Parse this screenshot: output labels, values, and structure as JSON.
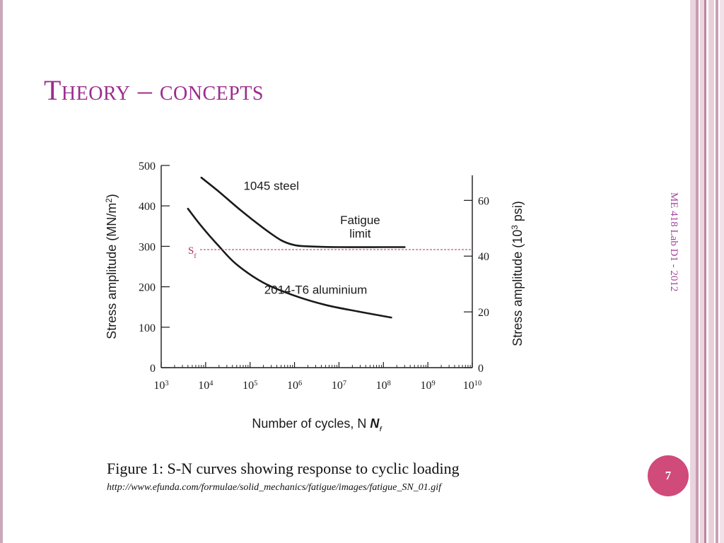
{
  "slide": {
    "title": "Theory – concepts",
    "side_text": "ME 418 Lab D1 - 2012",
    "caption": "Figure 1: S-N curves showing response to cyclic loading",
    "url": "http://www.efunda.com/formulae/solid_mechanics/fatigue/images/fatigue_SN_01.gif",
    "page_number": "7",
    "colors": {
      "title": "#9b2d8e",
      "page_badge": "#d04a7a",
      "sf_line": "#b0305a",
      "curve": "#1a1a1a"
    }
  },
  "chart_data": {
    "type": "line",
    "xlabel": "Number of cycles, N",
    "xlabel_sub": "f",
    "ylabel": "Stress amplitude (MN/m",
    "ylabel_sup": "2",
    "ylabel_end": ")",
    "ylabel_right": "Stress amplitude (10",
    "ylabel_right_sup": "3",
    "ylabel_right_end": " psi)",
    "x_scale": "log",
    "xlim": [
      1000,
      10000000000
    ],
    "ylim": [
      0,
      500
    ],
    "x_ticks": [
      {
        "value": 1000,
        "base": "10",
        "exp": "3"
      },
      {
        "value": 10000,
        "base": "10",
        "exp": "4"
      },
      {
        "value": 100000,
        "base": "10",
        "exp": "5"
      },
      {
        "value": 1000000,
        "base": "10",
        "exp": "6"
      },
      {
        "value": 10000000,
        "base": "10",
        "exp": "7"
      },
      {
        "value": 100000000,
        "base": "10",
        "exp": "8"
      },
      {
        "value": 1000000000,
        "base": "10",
        "exp": "9"
      },
      {
        "value": 10000000000,
        "base": "10",
        "exp": "10"
      }
    ],
    "y_ticks": [
      0,
      100,
      200,
      300,
      400,
      500
    ],
    "y_right_ticks": [
      0,
      20,
      40,
      60
    ],
    "y_right_unit_factor": 0.145038,
    "series": [
      {
        "name": "1045 steel",
        "x": [
          8000,
          20000,
          60000,
          200000,
          500000,
          1000000,
          2000000,
          10000000,
          100000000,
          300000000
        ],
        "y": [
          470,
          435,
          390,
          345,
          315,
          303,
          300,
          298,
          298,
          298
        ]
      },
      {
        "name": "2014-T6 aluminium",
        "x": [
          4000,
          8000,
          20000,
          50000,
          200000,
          1000000,
          5000000,
          30000000,
          150000000
        ],
        "y": [
          393,
          350,
          300,
          255,
          210,
          178,
          155,
          138,
          124
        ]
      }
    ],
    "annotations": [
      {
        "text": "1045 steel",
        "x": 300000,
        "y": 440
      },
      {
        "text": "Fatigue",
        "x": 30000000,
        "y": 355
      },
      {
        "text": "limit",
        "x": 30000000,
        "y": 322
      },
      {
        "text": "2014-T6 aluminium",
        "x": 3000000,
        "y": 183
      }
    ],
    "reference_line": {
      "label": "S",
      "label_sub": "f",
      "y": 292
    }
  }
}
